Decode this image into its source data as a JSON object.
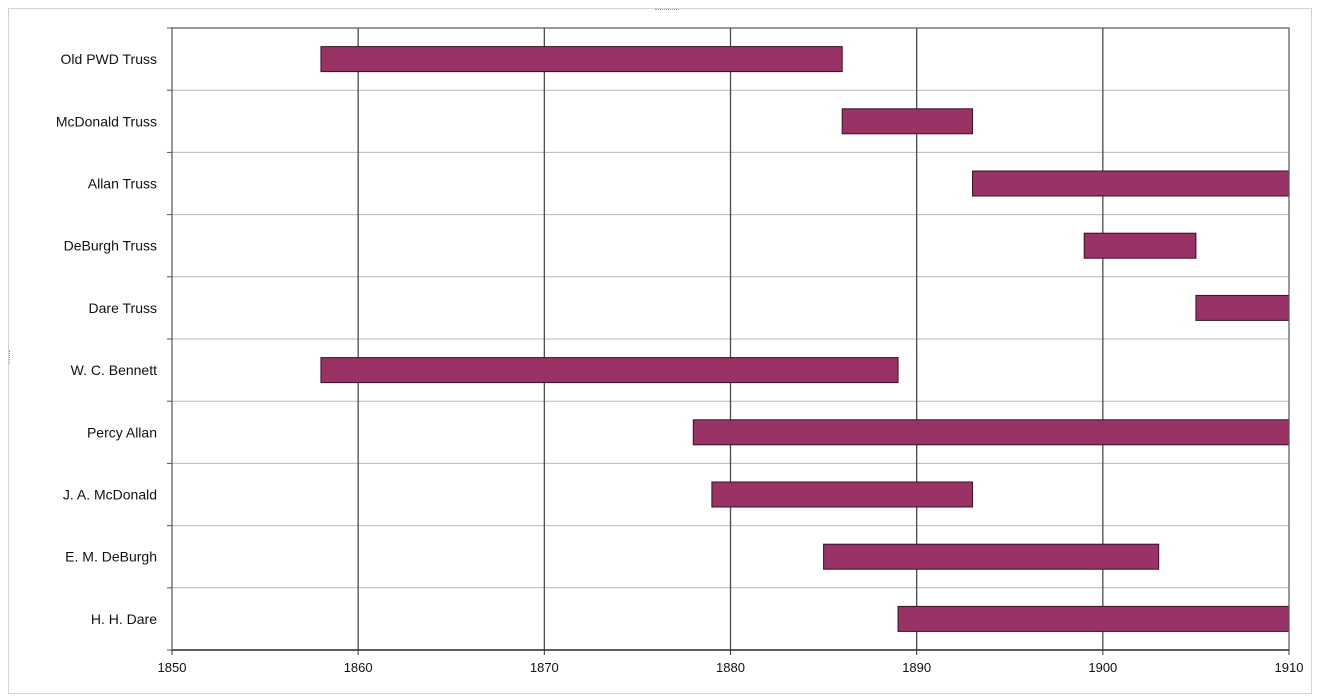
{
  "chart_data": {
    "type": "bar",
    "orientation": "horizontal-range",
    "title": "",
    "xlabel": "",
    "ylabel": "",
    "xlim": [
      1850,
      1910
    ],
    "xticks": [
      1850,
      1860,
      1870,
      1880,
      1890,
      1900,
      1910
    ],
    "grid": true,
    "legend": "none",
    "bar_color": "#993366",
    "categories": [
      "Old PWD Truss",
      "McDonald Truss",
      "Allan Truss",
      "DeBurgh Truss",
      "Dare Truss",
      "W. C. Bennett",
      "Percy Allan",
      "J. A. McDonald",
      "E. M. DeBurgh",
      "H. H. Dare"
    ],
    "series": [
      {
        "ranges": [
          [
            1858,
            1886
          ],
          [
            1886,
            1893
          ],
          [
            1893,
            1910
          ],
          [
            1899,
            1905
          ],
          [
            1905,
            1910
          ],
          [
            1858,
            1889
          ],
          [
            1878,
            1910
          ],
          [
            1879,
            1893
          ],
          [
            1885,
            1903
          ],
          [
            1889,
            1910
          ]
        ]
      }
    ]
  }
}
